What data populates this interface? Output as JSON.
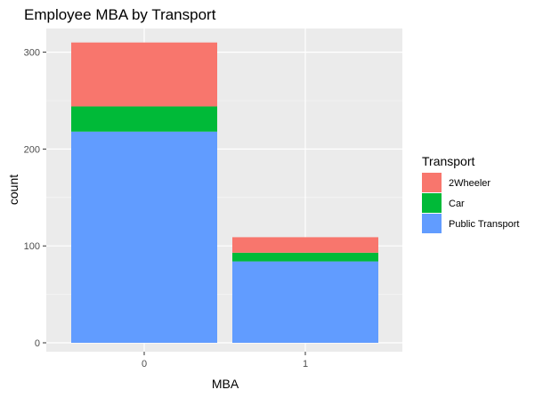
{
  "chart_data": {
    "type": "bar",
    "stacked": true,
    "title": "Employee MBA by Transport",
    "xlabel": "MBA",
    "ylabel": "count",
    "categories": [
      "0",
      "1"
    ],
    "ylim": [
      0,
      330
    ],
    "yticks": [
      0,
      100,
      200,
      300
    ],
    "grid": true,
    "legend_position": "right",
    "legend_title": "Transport",
    "series": [
      {
        "name": "Public Transport",
        "color": "#619CFF",
        "values": [
          218,
          84
        ]
      },
      {
        "name": "Car",
        "color": "#00BA38",
        "values": [
          26,
          9
        ]
      },
      {
        "name": "2Wheeler",
        "color": "#F8766D",
        "values": [
          66,
          16
        ]
      }
    ],
    "legend_order": [
      "2Wheeler",
      "Car",
      "Public Transport"
    ]
  }
}
